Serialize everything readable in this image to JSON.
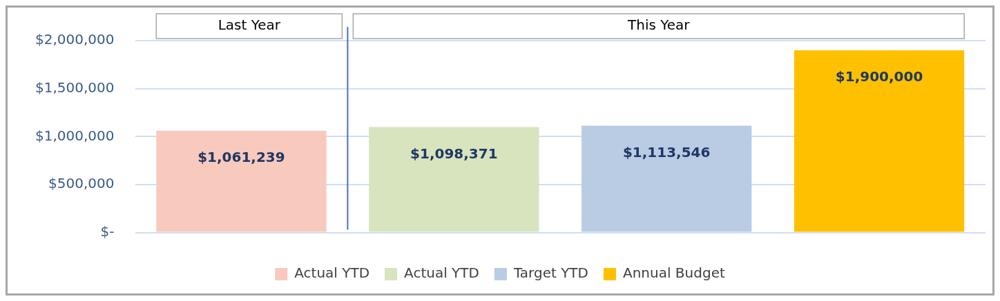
{
  "chart_data": {
    "type": "bar",
    "categories": [
      null,
      null,
      null,
      null
    ],
    "series": [
      {
        "name": "Actual YTD",
        "color": "#f8c9bd",
        "values": [
          1061239,
          null,
          null,
          null
        ],
        "value_labels": [
          "$1,061,239",
          null,
          null,
          null
        ]
      },
      {
        "name": "Actual YTD",
        "color": "#d7e4bd",
        "values": [
          null,
          1098371,
          null,
          null
        ],
        "value_labels": [
          null,
          "$1,098,371",
          null,
          null
        ]
      },
      {
        "name": "Target YTD",
        "color": "#b9cce4",
        "values": [
          null,
          null,
          1113546,
          null
        ],
        "value_labels": [
          null,
          null,
          "$1,113,546",
          null
        ]
      },
      {
        "name": "Annual Budget",
        "color": "#ffc000",
        "values": [
          null,
          null,
          null,
          1900000
        ],
        "value_labels": [
          null,
          null,
          null,
          "$1,900,000"
        ]
      }
    ],
    "ylim": [
      0,
      2000000
    ],
    "yticks": [
      {
        "value": 0,
        "label": "$-"
      },
      {
        "value": 500000,
        "label": "$500,000"
      },
      {
        "value": 1000000,
        "label": "$1,000,000"
      },
      {
        "value": 1500000,
        "label": "$1,500,000"
      },
      {
        "value": 2000000,
        "label": "$2,000,000"
      }
    ],
    "grid": "y",
    "legend": "bottom",
    "annotations": [
      "Last Year",
      "This Year"
    ]
  }
}
